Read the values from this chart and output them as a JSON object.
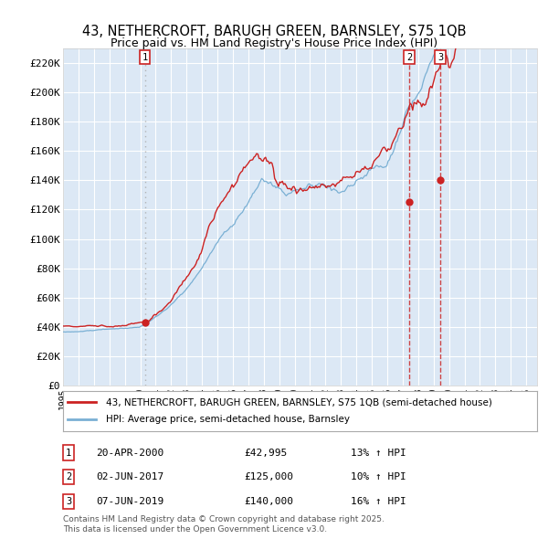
{
  "title_line1": "43, NETHERCROFT, BARUGH GREEN, BARNSLEY, S75 1QB",
  "title_line2": "Price paid vs. HM Land Registry's House Price Index (HPI)",
  "legend_red": "43, NETHERCROFT, BARUGH GREEN, BARNSLEY, S75 1QB (semi-detached house)",
  "legend_blue": "HPI: Average price, semi-detached house, Barnsley",
  "sale_points": [
    {
      "num": 1,
      "date_x": 2000.3,
      "price": 42995,
      "label": "20-APR-2000",
      "amount": "£42,995",
      "pct": "13% ↑ HPI",
      "vline_style": "dotted",
      "vline_color": "#aaaaaa"
    },
    {
      "num": 2,
      "date_x": 2017.42,
      "price": 125000,
      "label": "02-JUN-2017",
      "amount": "£125,000",
      "pct": "10% ↑ HPI",
      "vline_style": "dashed",
      "vline_color": "#cc3333"
    },
    {
      "num": 3,
      "date_x": 2019.43,
      "price": 140000,
      "label": "07-JUN-2019",
      "amount": "£140,000",
      "pct": "16% ↑ HPI",
      "vline_style": "dashed",
      "vline_color": "#cc3333"
    }
  ],
  "ylabel_ticks": [
    "£0",
    "£20K",
    "£40K",
    "£60K",
    "£80K",
    "£100K",
    "£120K",
    "£140K",
    "£160K",
    "£180K",
    "£200K",
    "£220K"
  ],
  "ytick_vals": [
    0,
    20000,
    40000,
    60000,
    80000,
    100000,
    120000,
    140000,
    160000,
    180000,
    200000,
    220000
  ],
  "xmin": 1995.0,
  "xmax": 2025.7,
  "ymin": 0,
  "ymax": 230000,
  "plot_bg": "#dce8f5",
  "fig_bg": "#ffffff",
  "red_color": "#cc2222",
  "blue_color": "#7ab0d4",
  "grid_color": "#ffffff",
  "footnote1": "Contains HM Land Registry data © Crown copyright and database right 2025.",
  "footnote2": "This data is licensed under the Open Government Licence v3.0."
}
